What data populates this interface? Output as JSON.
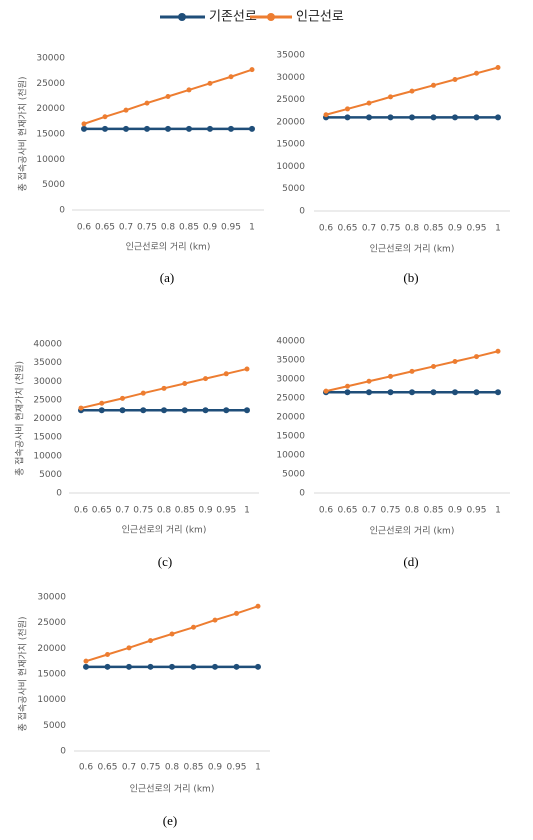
{
  "legend": [
    {
      "name": "기존선로",
      "color": "#1f4e79"
    },
    {
      "name": "인근선로",
      "color": "#ed7d31"
    }
  ],
  "chart_data": [
    {
      "type": "line",
      "caption": "(a)",
      "xlabel": "인근선로의 거리 (km)",
      "ylabel": "총 접속공사비 현재가치 (천원)",
      "x": [
        0.6,
        0.65,
        0.7,
        0.75,
        0.8,
        0.85,
        0.9,
        0.95,
        1
      ],
      "series": [
        {
          "values": [
            16000,
            16000,
            16000,
            16000,
            16000,
            16000,
            16000,
            16000,
            16000
          ]
        },
        {
          "values": [
            17000,
            18400,
            19700,
            21100,
            22400,
            23700,
            25000,
            26300,
            27700
          ]
        }
      ],
      "ylim": [
        0,
        30000
      ],
      "yticks": [
        0,
        5000,
        10000,
        15000,
        20000,
        25000,
        30000
      ]
    },
    {
      "type": "line",
      "caption": "(b)",
      "xlabel": "인근선로의 거리 (km)",
      "x": [
        0.6,
        0.65,
        0.7,
        0.75,
        0.8,
        0.85,
        0.9,
        0.95,
        1
      ],
      "series": [
        {
          "values": [
            21000,
            21000,
            21000,
            21000,
            21000,
            21000,
            21000,
            21000,
            21000
          ]
        },
        {
          "values": [
            21600,
            22900,
            24200,
            25600,
            26900,
            28200,
            29500,
            30900,
            32200
          ]
        }
      ],
      "ylim": [
        0,
        35000
      ],
      "yticks": [
        0,
        5000,
        10000,
        15000,
        20000,
        25000,
        30000,
        35000
      ]
    },
    {
      "type": "line",
      "caption": "(c)",
      "xlabel": "인근선로의 거리 (km)",
      "ylabel": "총 접속공사비 현재가치 (천원)",
      "x": [
        0.6,
        0.65,
        0.7,
        0.75,
        0.8,
        0.85,
        0.9,
        0.95,
        1
      ],
      "series": [
        {
          "values": [
            22200,
            22200,
            22200,
            22200,
            22200,
            22200,
            22200,
            22200,
            22200
          ]
        },
        {
          "values": [
            22800,
            24100,
            25400,
            26800,
            28100,
            29400,
            30700,
            32000,
            33300
          ]
        }
      ],
      "ylim": [
        0,
        40000
      ],
      "yticks": [
        0,
        5000,
        10000,
        15000,
        20000,
        25000,
        30000,
        35000,
        40000
      ]
    },
    {
      "type": "line",
      "caption": "(d)",
      "xlabel": "인근선로의 거리 (km)",
      "x": [
        0.6,
        0.65,
        0.7,
        0.75,
        0.8,
        0.85,
        0.9,
        0.95,
        1
      ],
      "series": [
        {
          "values": [
            26500,
            26500,
            26500,
            26500,
            26500,
            26500,
            26500,
            26500,
            26500
          ]
        },
        {
          "values": [
            26800,
            28100,
            29400,
            30700,
            32000,
            33300,
            34600,
            35900,
            37300
          ]
        }
      ],
      "ylim": [
        0,
        40000
      ],
      "yticks": [
        0,
        5000,
        10000,
        15000,
        20000,
        25000,
        30000,
        35000,
        40000
      ]
    },
    {
      "type": "line",
      "caption": "(e)",
      "xlabel": "인근선로의 거리 (km)",
      "ylabel": "총 접속공사비 현재가치 (천원)",
      "x": [
        0.6,
        0.65,
        0.7,
        0.75,
        0.8,
        0.85,
        0.9,
        0.95,
        1
      ],
      "series": [
        {
          "values": [
            16400,
            16400,
            16400,
            16400,
            16400,
            16400,
            16400,
            16400,
            16400
          ]
        },
        {
          "values": [
            17500,
            18800,
            20100,
            21500,
            22800,
            24100,
            25500,
            26800,
            28200
          ]
        }
      ],
      "ylim": [
        0,
        30000
      ],
      "yticks": [
        0,
        5000,
        10000,
        15000,
        20000,
        25000,
        30000
      ]
    }
  ]
}
